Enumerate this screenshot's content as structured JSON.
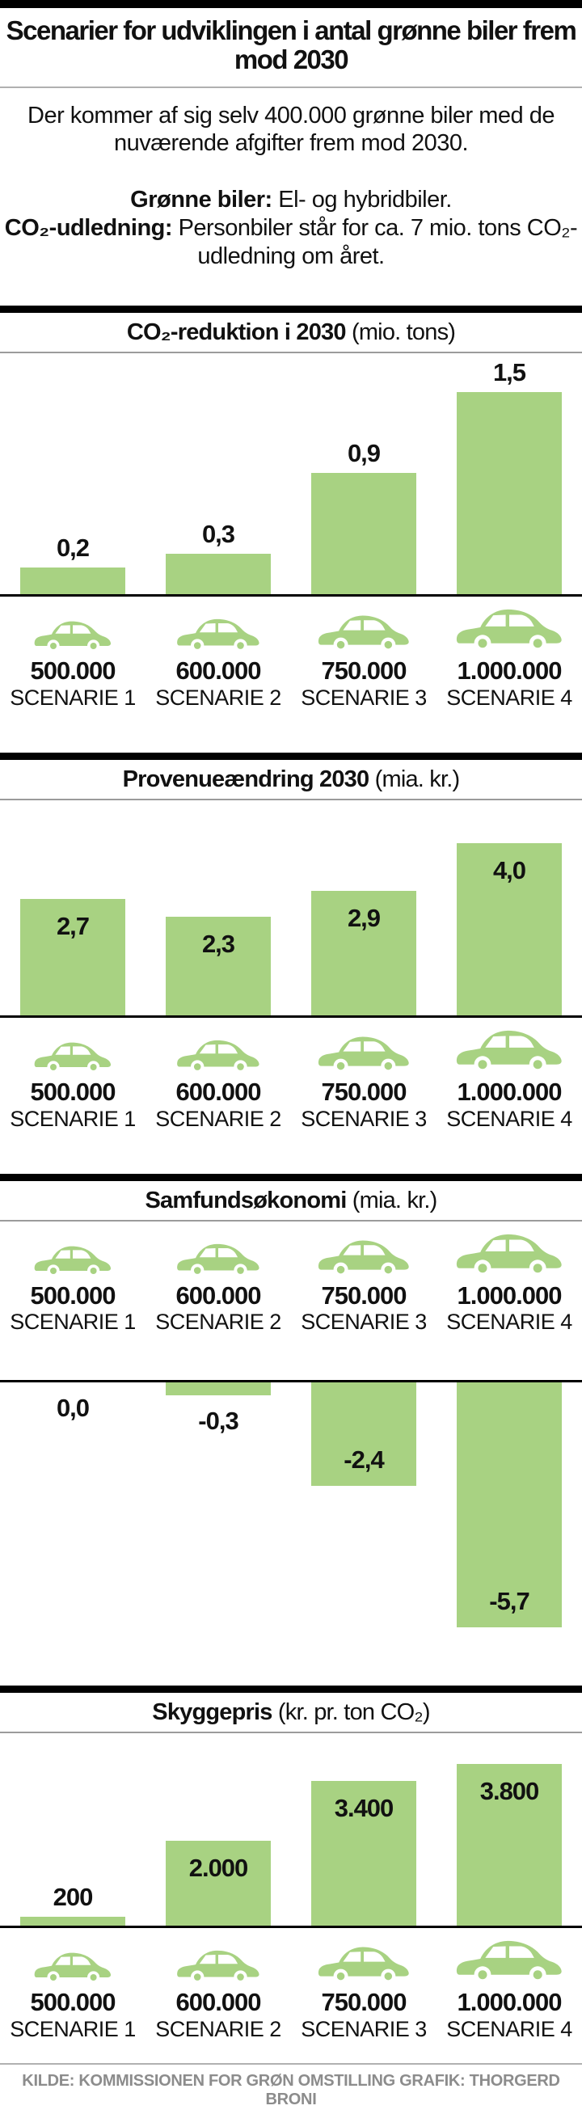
{
  "header": {
    "title": "Scenarier for udviklingen i antal grønne biler frem mod 2030",
    "intro": "Der kommer af sig selv 400.000 grønne biler med de nuværende afgifter frem mod 2030.",
    "def1_label": "Grønne biler:",
    "def1_text": " El- og hybridbiler.",
    "def2_label": "CO₂-udledning:",
    "def2_text": " Personbiler står for ca. 7 mio. tons CO₂-udledning om året."
  },
  "colors": {
    "bar_green": "#a8d282",
    "line_black": "#000000",
    "divider_gray": "#b0b0b0",
    "source_gray": "#8c8c8c"
  },
  "scenarios": [
    {
      "count": "500.000",
      "name": "SCENARIE 1"
    },
    {
      "count": "600.000",
      "name": "SCENARIE 2"
    },
    {
      "count": "750.000",
      "name": "SCENARIE 3"
    },
    {
      "count": "1.000.000",
      "name": "SCENARIE 4"
    }
  ],
  "chart_data": [
    {
      "type": "bar",
      "title": "CO₂-reduktion i 2030",
      "unit": "(mio. tons)",
      "categories": [
        "500.000 SCENARIE 1",
        "600.000 SCENARIE 2",
        "750.000 SCENARIE 3",
        "1.000.000 SCENARIE 4"
      ],
      "values": [
        0.2,
        0.3,
        0.9,
        1.5
      ],
      "value_labels": [
        "0,2",
        "0,3",
        "0,9",
        "1,5"
      ],
      "label_pos": [
        "above",
        "above",
        "above",
        "above"
      ],
      "ylim": [
        0,
        1.5
      ],
      "grid": false,
      "legend": false
    },
    {
      "type": "bar",
      "title": "Provenueændring 2030",
      "unit": "(mia. kr.)",
      "categories": [
        "500.000 SCENARIE 1",
        "600.000 SCENARIE 2",
        "750.000 SCENARIE 3",
        "1.000.000 SCENARIE 4"
      ],
      "values": [
        2.7,
        2.3,
        2.9,
        4.0
      ],
      "value_labels": [
        "2,7",
        "2,3",
        "2,9",
        "4,0"
      ],
      "label_pos": [
        "inside-top",
        "inside-top",
        "inside-top",
        "inside-top"
      ],
      "ylim": [
        0,
        4.0
      ],
      "grid": false,
      "legend": false
    },
    {
      "type": "bar",
      "title": "Samfundsøkonomi",
      "unit": "(mia. kr.)",
      "categories": [
        "500.000 SCENARIE 1",
        "600.000 SCENARIE 2",
        "750.000 SCENARIE 3",
        "1.000.000 SCENARIE 4"
      ],
      "values": [
        0.0,
        -0.3,
        -2.4,
        -5.7
      ],
      "value_labels": [
        "0,0",
        "-0,3",
        "-2,4",
        "-5,7"
      ],
      "label_pos": [
        "below",
        "below",
        "inside-bottom",
        "inside-bottom"
      ],
      "ylim": [
        -5.7,
        0
      ],
      "grid": false,
      "legend": false
    },
    {
      "type": "bar",
      "title": "Skyggepris",
      "unit": "(kr. pr. ton CO₂)",
      "categories": [
        "500.000 SCENARIE 1",
        "600.000 SCENARIE 2",
        "750.000 SCENARIE 3",
        "1.000.000 SCENARIE 4"
      ],
      "values": [
        200,
        2000,
        3400,
        3800
      ],
      "value_labels": [
        "200",
        "2.000",
        "3.400",
        "3.800"
      ],
      "label_pos": [
        "above",
        "inside-top",
        "inside-top",
        "inside-top"
      ],
      "ylim": [
        0,
        3800
      ],
      "grid": false,
      "legend": false
    }
  ],
  "footer": {
    "source": "KILDE: KOMMISSIONEN FOR GRØN OMSTILLING  GRAFIK: THORGERD BRONI"
  }
}
